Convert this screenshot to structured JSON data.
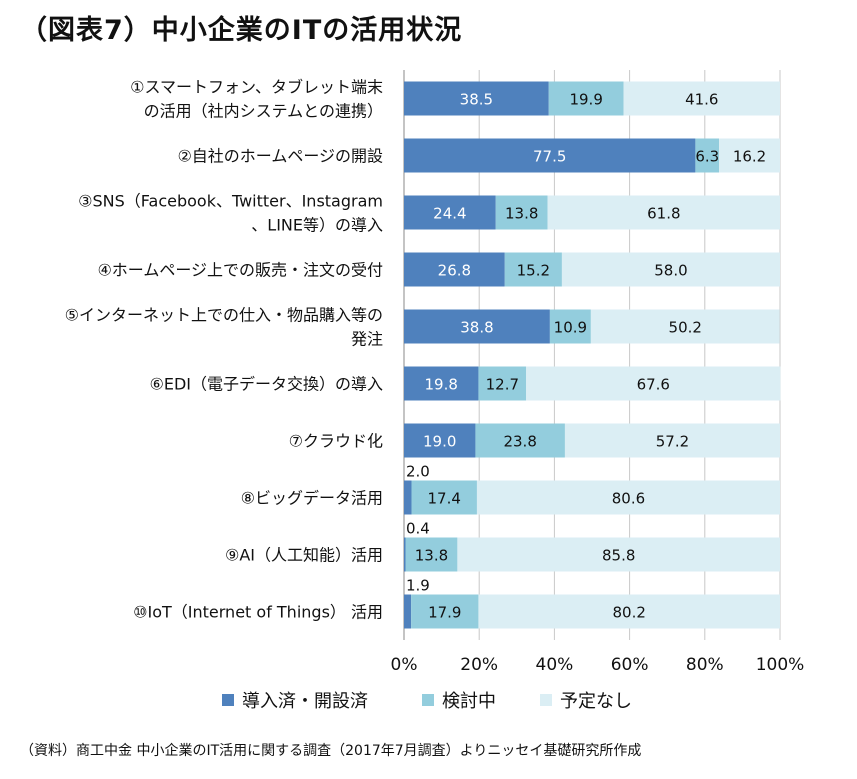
{
  "title": "（図表7）中小企業のITの活用状況",
  "source_note": "（資料）商工中金 中小企業のIT活用に関する調査（2017年7月調査）よりニッセイ基礎研究所作成",
  "colors": {
    "introduced": "#4f81bd",
    "considering": "#93cddd",
    "no_plan": "#dbeef4",
    "grid": "#c8c8c8",
    "axis": "#888888"
  },
  "chart_data": {
    "type": "bar",
    "orientation": "horizontal",
    "stacked": "percent",
    "categories": [
      [
        "①スマートフォン、タブレット端末",
        "の活用（社内システムとの連携）"
      ],
      [
        "②自社のホームページの開設"
      ],
      [
        "③SNS（Facebook、Twitter、Instagram",
        "、LINE等）の導入"
      ],
      [
        "④ホームページ上での販売・注文の受付"
      ],
      [
        "⑤インターネット上での仕入・物品購入等の",
        "発注"
      ],
      [
        "⑥EDI（電子データ交換）の導入"
      ],
      [
        "⑦クラウド化"
      ],
      [
        "⑧ビッグデータ活用"
      ],
      [
        "⑨AI（人工知能）活用"
      ],
      [
        "⑩IoT（Internet of Things） 活用"
      ]
    ],
    "series": [
      {
        "name": "導入済・開設済",
        "values": [
          38.5,
          77.5,
          24.4,
          26.8,
          38.8,
          19.8,
          19.0,
          2.0,
          0.4,
          1.9
        ],
        "labels": [
          "38.5",
          "77.5",
          "24.4",
          "26.8",
          "38.8",
          "19.8",
          "19.0",
          "2.0",
          "0.4",
          "1.9"
        ]
      },
      {
        "name": "検討中",
        "values": [
          19.9,
          6.3,
          13.8,
          15.2,
          10.9,
          12.7,
          23.8,
          17.4,
          13.8,
          17.9
        ],
        "labels": [
          "19.9",
          "6.3",
          "13.8",
          "15.2",
          "10.9",
          "12.7",
          "23.8",
          "17.4",
          "13.8",
          "17.9"
        ]
      },
      {
        "name": "予定なし",
        "values": [
          41.6,
          16.2,
          61.8,
          58.0,
          50.2,
          67.6,
          57.2,
          80.6,
          85.8,
          80.2
        ],
        "labels": [
          "41.6",
          "16.2",
          "61.8",
          "58.0",
          "50.2",
          "67.6",
          "57.2",
          "80.6",
          "85.8",
          "80.2"
        ]
      }
    ],
    "xlim": [
      0,
      100
    ],
    "xticks": [
      "0%",
      "20%",
      "40%",
      "60%",
      "80%",
      "100%"
    ],
    "grid": true,
    "legend_position": "bottom"
  }
}
